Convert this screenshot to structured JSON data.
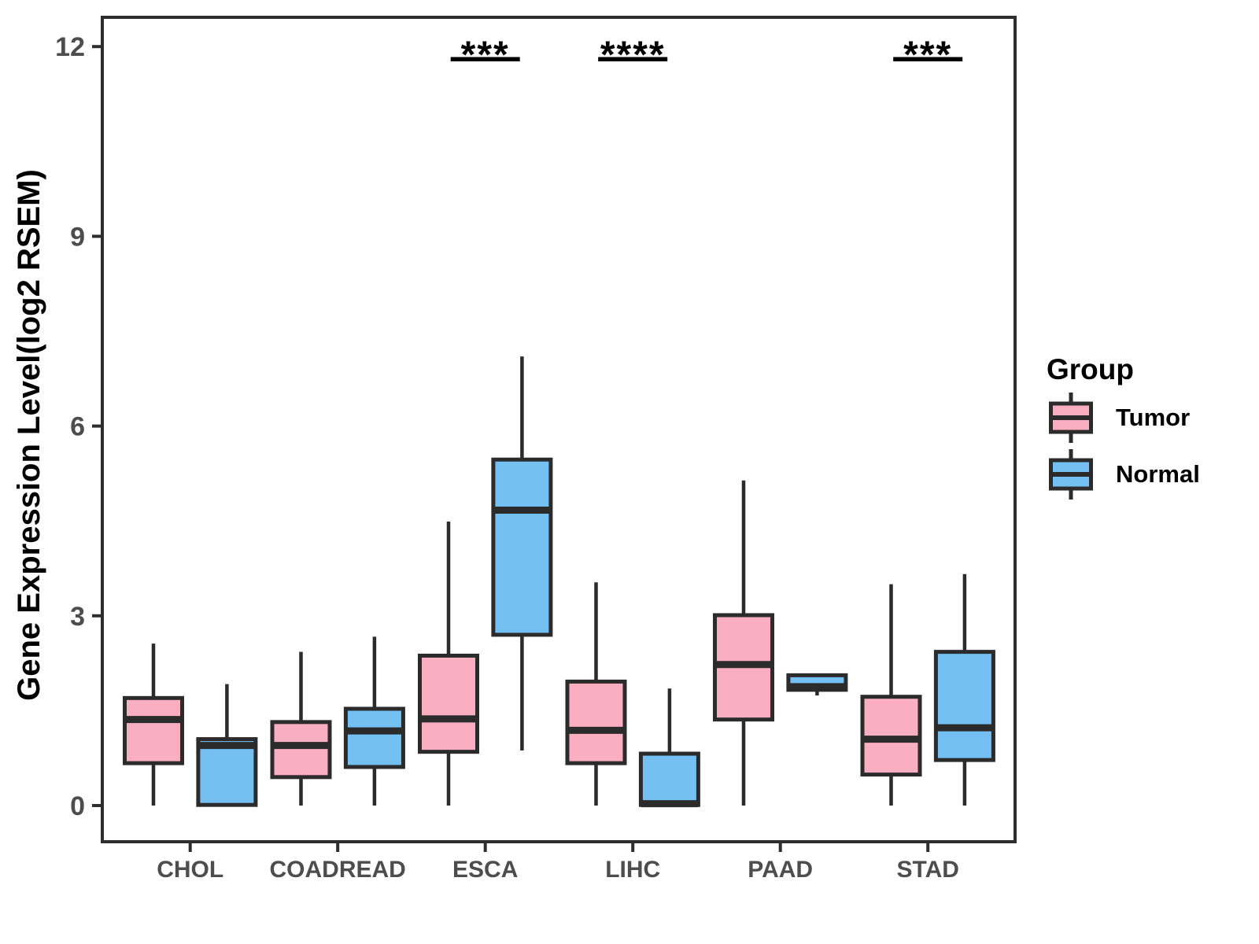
{
  "figure": {
    "y_axis_title": "Gene Expression Level(log2 RSEM)",
    "legend": {
      "title": "Group",
      "items": [
        {
          "label": "Tumor",
          "color": "#FAAEC2"
        },
        {
          "label": "Normal",
          "color": "#74C0F2"
        }
      ]
    }
  },
  "colors": {
    "tumor_fill": "#FAAEC2",
    "normal_fill": "#74C0F2",
    "box_border": "#2B2B2B",
    "panel_border": "#2E2E2E",
    "axis_text": "#4D4D4D",
    "annotation": "#000000"
  },
  "chart_data": {
    "type": "boxplot",
    "title": "",
    "xlabel": "",
    "ylabel": "Gene Expression Level(log2 RSEM)",
    "categories": [
      "CHOL",
      "COADREAD",
      "ESCA",
      "LIHC",
      "PAAD",
      "STAD"
    ],
    "y_ticks": [
      "0",
      "3",
      "6",
      "9",
      "12"
    ],
    "y_tick_values": [
      0,
      3,
      6,
      9,
      12
    ],
    "ylim": [
      -0.6,
      12.5
    ],
    "grid": false,
    "legend_position": "right",
    "series": [
      {
        "name": "Tumor",
        "color": "#FAAEC2",
        "boxes": [
          {
            "category": "CHOL",
            "min": 0,
            "q1": 0.67,
            "median": 1.36,
            "q3": 1.7,
            "max": 2.56
          },
          {
            "category": "COADREAD",
            "min": 0,
            "q1": 0.45,
            "median": 0.95,
            "q3": 1.32,
            "max": 2.43
          },
          {
            "category": "ESCA",
            "min": 0,
            "q1": 0.85,
            "median": 1.37,
            "q3": 2.37,
            "max": 4.49
          },
          {
            "category": "LIHC",
            "min": 0,
            "q1": 0.67,
            "median": 1.19,
            "q3": 1.96,
            "max": 3.53
          },
          {
            "category": "PAAD",
            "min": 0,
            "q1": 1.36,
            "median": 2.23,
            "q3": 3.01,
            "max": 5.14
          },
          {
            "category": "STAD",
            "min": 0,
            "q1": 0.49,
            "median": 1.05,
            "q3": 1.72,
            "max": 3.5
          }
        ]
      },
      {
        "name": "Normal",
        "color": "#74C0F2",
        "boxes": [
          {
            "category": "CHOL",
            "min": 0,
            "q1": 0.01,
            "median": 0.95,
            "q3": 1.05,
            "max": 1.92
          },
          {
            "category": "COADREAD",
            "min": 0,
            "q1": 0.61,
            "median": 1.18,
            "q3": 1.53,
            "max": 2.67
          },
          {
            "category": "ESCA",
            "min": 0.87,
            "q1": 2.7,
            "median": 4.67,
            "q3": 5.47,
            "max": 7.1
          },
          {
            "category": "LIHC",
            "min": 0,
            "q1": 0.01,
            "median": 0.03,
            "q3": 0.82,
            "max": 1.85
          },
          {
            "category": "PAAD",
            "min": 1.74,
            "q1": 1.83,
            "median": 1.88,
            "q3": 2.06,
            "max": 2.08
          },
          {
            "category": "STAD",
            "min": 0,
            "q1": 0.72,
            "median": 1.23,
            "q3": 2.43,
            "max": 3.66
          }
        ]
      }
    ],
    "annotations": [
      {
        "category": "ESCA",
        "label": "***",
        "y": 11.8
      },
      {
        "category": "LIHC",
        "label": "****",
        "y": 11.8
      },
      {
        "category": "STAD",
        "label": "***",
        "y": 11.8
      }
    ]
  }
}
